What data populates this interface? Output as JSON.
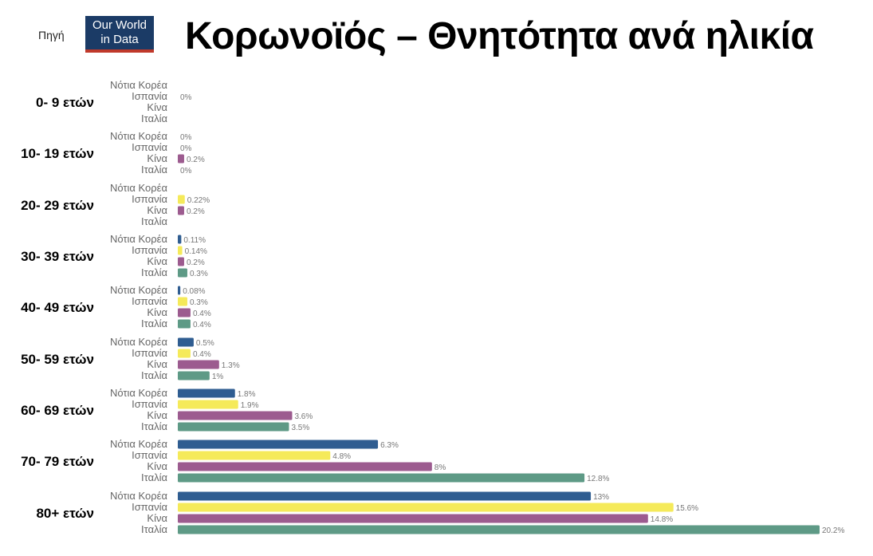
{
  "header": {
    "source_label": "Πηγή",
    "logo_line1": "Our World",
    "logo_line2": "in Data",
    "title": "Κορωνοϊός – Θνητότητα ανά ηλικία"
  },
  "colors": {
    "Νότια Κορέα": "#2f5d91",
    "Ισπανία": "#f5ea5a",
    "Κίνα": "#9c5b8f",
    "Ιταλία": "#5e9a86"
  },
  "chart_data": {
    "type": "bar",
    "orientation": "horizontal",
    "title": "Κορωνοϊός – Θνητότητα ανά ηλικία",
    "xlim": [
      0,
      20.2
    ],
    "grid": false,
    "value_suffix": "%",
    "groups": [
      {
        "label": "0- 9 ετών",
        "bars": [
          {
            "series": "Νότια Κορέα",
            "value": null,
            "label": ""
          },
          {
            "series": "Ισπανία",
            "value": 0,
            "label": "0%"
          },
          {
            "series": "Κίνα",
            "value": null,
            "label": ""
          },
          {
            "series": "Ιταλία",
            "value": null,
            "label": ""
          }
        ]
      },
      {
        "label": "10- 19 ετών",
        "bars": [
          {
            "series": "Νότια Κορέα",
            "value": 0,
            "label": "0%"
          },
          {
            "series": "Ισπανία",
            "value": 0,
            "label": "0%"
          },
          {
            "series": "Κίνα",
            "value": 0.2,
            "label": "0.2%"
          },
          {
            "series": "Ιταλία",
            "value": 0,
            "label": "0%"
          }
        ]
      },
      {
        "label": "20- 29 ετών",
        "bars": [
          {
            "series": "Νότια Κορέα",
            "value": null,
            "label": ""
          },
          {
            "series": "Ισπανία",
            "value": 0.22,
            "label": "0.22%"
          },
          {
            "series": "Κίνα",
            "value": 0.2,
            "label": "0.2%"
          },
          {
            "series": "Ιταλία",
            "value": null,
            "label": ""
          }
        ]
      },
      {
        "label": "30- 39 ετών",
        "bars": [
          {
            "series": "Νότια Κορέα",
            "value": 0.11,
            "label": "0.11%"
          },
          {
            "series": "Ισπανία",
            "value": 0.14,
            "label": "0.14%"
          },
          {
            "series": "Κίνα",
            "value": 0.2,
            "label": "0.2%"
          },
          {
            "series": "Ιταλία",
            "value": 0.3,
            "label": "0.3%"
          }
        ]
      },
      {
        "label": "40- 49 ετών",
        "bars": [
          {
            "series": "Νότια Κορέα",
            "value": 0.08,
            "label": "0.08%"
          },
          {
            "series": "Ισπανία",
            "value": 0.3,
            "label": "0.3%"
          },
          {
            "series": "Κίνα",
            "value": 0.4,
            "label": "0.4%"
          },
          {
            "series": "Ιταλία",
            "value": 0.4,
            "label": "0.4%"
          }
        ]
      },
      {
        "label": "50- 59 ετών",
        "bars": [
          {
            "series": "Νότια Κορέα",
            "value": 0.5,
            "label": "0.5%"
          },
          {
            "series": "Ισπανία",
            "value": 0.4,
            "label": "0.4%"
          },
          {
            "series": "Κίνα",
            "value": 1.3,
            "label": "1.3%"
          },
          {
            "series": "Ιταλία",
            "value": 1,
            "label": "1%"
          }
        ]
      },
      {
        "label": "60- 69 ετών",
        "bars": [
          {
            "series": "Νότια Κορέα",
            "value": 1.8,
            "label": "1.8%"
          },
          {
            "series": "Ισπανία",
            "value": 1.9,
            "label": "1.9%"
          },
          {
            "series": "Κίνα",
            "value": 3.6,
            "label": "3.6%"
          },
          {
            "series": "Ιταλία",
            "value": 3.5,
            "label": "3.5%"
          }
        ]
      },
      {
        "label": "70- 79 ετών",
        "bars": [
          {
            "series": "Νότια Κορέα",
            "value": 6.3,
            "label": "6.3%"
          },
          {
            "series": "Ισπανία",
            "value": 4.8,
            "label": "4.8%"
          },
          {
            "series": "Κίνα",
            "value": 8,
            "label": "8%"
          },
          {
            "series": "Ιταλία",
            "value": 12.8,
            "label": "12.8%"
          }
        ]
      },
      {
        "label": "80+ ετών",
        "bars": [
          {
            "series": "Νότια Κορέα",
            "value": 13,
            "label": "13%"
          },
          {
            "series": "Ισπανία",
            "value": 15.6,
            "label": "15.6%"
          },
          {
            "series": "Κίνα",
            "value": 14.8,
            "label": "14.8%"
          },
          {
            "series": "Ιταλία",
            "value": 20.2,
            "label": "20.2%"
          }
        ]
      }
    ]
  }
}
